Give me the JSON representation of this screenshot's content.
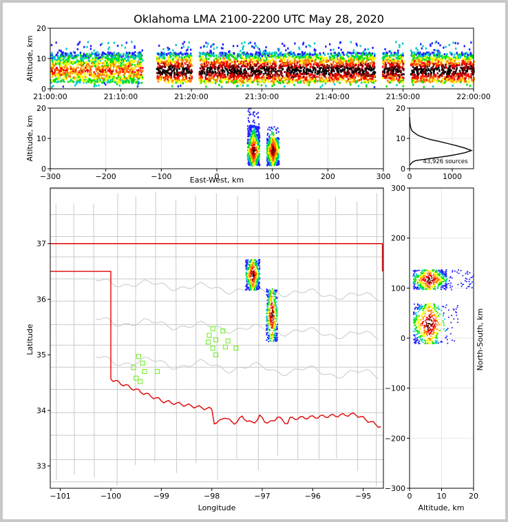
{
  "figure": {
    "title": "Oklahoma LMA 2100-2200 UTC May 28, 2020",
    "source_count_label": "43,926 sources"
  },
  "colors": {
    "state_border": "#e00000",
    "county_lines": "#c8c8c8",
    "station_markers": "#7cf03a",
    "axes": "#000000",
    "grid": "#e6e6e6"
  },
  "chart_data": [
    {
      "panel": "altitude_vs_time",
      "type": "heatmap",
      "ylabel": "Altitude, km",
      "xlabel": "",
      "ylim": [
        0,
        20
      ],
      "y_ticks": [
        "0",
        "10",
        "20"
      ],
      "x_ticks": [
        "21:00:00",
        "21:10:00",
        "21:20:00",
        "21:30:00",
        "21:40:00",
        "21:50:00",
        "22:00:00"
      ],
      "colormap": [
        "#ffffff",
        "#2020ff",
        "#00c8c8",
        "#00e000",
        "#ffff00",
        "#ff8000",
        "#ff0000",
        "#800000",
        "#000000"
      ],
      "activity_segments_minutes": [
        [
          0,
          10
        ],
        [
          10,
          13
        ],
        [
          15,
          20
        ],
        [
          21,
          46
        ],
        [
          47,
          50
        ],
        [
          51,
          60
        ]
      ],
      "altitude_band_km": [
        2,
        12
      ]
    },
    {
      "panel": "altitude_vs_east_west",
      "type": "heatmap",
      "xlabel": "East-West, km",
      "ylabel": "Altitude, km",
      "xlim": [
        -300,
        300
      ],
      "ylim": [
        0,
        20
      ],
      "x_ticks": [
        "−300",
        "−200",
        "−100",
        "0",
        "100",
        "200",
        "300"
      ],
      "y_ticks": [
        "0",
        "10",
        "20"
      ],
      "clusters": [
        {
          "x_center_km": 65,
          "x_width_km": 22,
          "z_top_km": 20
        },
        {
          "x_center_km": 100,
          "x_width_km": 22,
          "z_top_km": 14
        }
      ]
    },
    {
      "panel": "altitude_histogram",
      "type": "line",
      "xlim": [
        0,
        1500
      ],
      "ylim": [
        0,
        20
      ],
      "x_ticks": [
        "0",
        "1000"
      ],
      "y_ticks": [
        "0",
        "10",
        "20"
      ],
      "x": [
        0,
        5,
        10,
        20,
        40,
        60,
        100,
        150,
        200,
        300,
        400,
        500,
        700,
        900,
        1100,
        1300,
        1450,
        1300,
        1100,
        900,
        700,
        500,
        300,
        150,
        80,
        40,
        10
      ],
      "y": [
        17,
        16,
        15,
        14,
        13,
        12.5,
        12,
        11.5,
        11,
        10.5,
        10,
        9.6,
        9,
        8.3,
        7.6,
        6.8,
        6,
        5.3,
        4.7,
        4.2,
        3.8,
        3.4,
        3,
        2.7,
        2.3,
        1.8,
        1.2
      ]
    },
    {
      "panel": "plan_view_map",
      "type": "scatter",
      "xlabel": "Longitude",
      "ylabel": "Latitude",
      "xlim": [
        -101.2,
        -94.6
      ],
      "ylim": [
        32.6,
        38.0
      ],
      "x_ticks": [
        "−101",
        "−100",
        "−99",
        "−98",
        "−97",
        "−96",
        "−95"
      ],
      "y_ticks": [
        "33",
        "34",
        "35",
        "36",
        "37"
      ],
      "storm_cells": [
        {
          "lon": -97.2,
          "lat": 36.45,
          "lon_width": 0.28,
          "lat_height": 0.55
        },
        {
          "lon": -96.82,
          "lat": 35.72,
          "lon_width": 0.22,
          "lat_height": 0.95
        }
      ],
      "stations": [
        {
          "lon": -99.45,
          "lat": 34.97
        },
        {
          "lon": -99.37,
          "lat": 34.85
        },
        {
          "lon": -99.55,
          "lat": 34.77
        },
        {
          "lon": -99.33,
          "lat": 34.7
        },
        {
          "lon": -99.5,
          "lat": 34.58
        },
        {
          "lon": -99.42,
          "lat": 34.52
        },
        {
          "lon": -99.08,
          "lat": 34.7
        },
        {
          "lon": -97.98,
          "lat": 35.47
        },
        {
          "lon": -98.05,
          "lat": 35.35
        },
        {
          "lon": -98.07,
          "lat": 35.23
        },
        {
          "lon": -97.92,
          "lat": 35.27
        },
        {
          "lon": -97.78,
          "lat": 35.43
        },
        {
          "lon": -97.68,
          "lat": 35.25
        },
        {
          "lon": -97.98,
          "lat": 35.12
        },
        {
          "lon": -97.73,
          "lat": 35.14
        },
        {
          "lon": -97.92,
          "lat": 35.0
        },
        {
          "lon": -97.52,
          "lat": 35.12
        }
      ]
    },
    {
      "panel": "north_south_vs_altitude",
      "type": "heatmap",
      "xlabel": "Altitude, km",
      "ylabel": "North-South, km",
      "xlim": [
        0,
        20
      ],
      "ylim": [
        -300,
        300
      ],
      "x_ticks": [
        "0",
        "10",
        "20"
      ],
      "y_ticks": [
        "−300",
        "−200",
        "−100",
        "0",
        "100",
        "200",
        "300"
      ],
      "clusters": [
        {
          "ns_center_km": 118,
          "ns_height_km": 40,
          "alt_max_km": 20
        },
        {
          "ns_center_km": 30,
          "ns_height_km": 80,
          "alt_max_km": 15
        }
      ]
    }
  ]
}
